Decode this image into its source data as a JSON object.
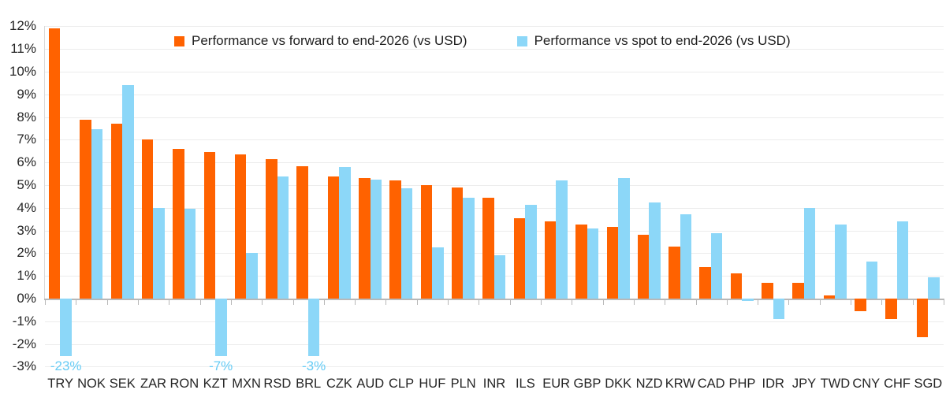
{
  "chart_data": {
    "type": "bar",
    "categories": [
      "TRY",
      "NOK",
      "SEK",
      "ZAR",
      "RON",
      "KZT",
      "MXN",
      "RSD",
      "BRL",
      "CZK",
      "AUD",
      "CLP",
      "HUF",
      "PLN",
      "INR",
      "ILS",
      "EUR",
      "GBP",
      "DKK",
      "NZD",
      "KRW",
      "CAD",
      "PHP",
      "IDR",
      "JPY",
      "TWD",
      "CNY",
      "CHF",
      "SGD"
    ],
    "series": [
      {
        "name": "Performance vs forward to end-2026 (vs USD)",
        "color": "#FF6200",
        "values": [
          11.9,
          7.9,
          7.7,
          7.0,
          6.6,
          6.45,
          6.35,
          6.15,
          5.85,
          5.4,
          5.3,
          5.2,
          5.0,
          4.9,
          4.45,
          3.55,
          3.4,
          3.25,
          3.15,
          2.8,
          2.3,
          1.4,
          1.1,
          0.7,
          0.7,
          0.15,
          -0.55,
          -0.9,
          -1.7
        ]
      },
      {
        "name": "Performance vs spot to end-2026 (vs USD)",
        "color": "#8CD7F8",
        "values": [
          -23,
          7.45,
          9.4,
          4.0,
          3.95,
          -7,
          2.0,
          5.4,
          -3,
          5.8,
          5.25,
          4.85,
          2.25,
          4.45,
          1.9,
          4.15,
          5.2,
          3.1,
          5.3,
          4.25,
          3.7,
          2.9,
          -0.1,
          -0.9,
          4.0,
          3.25,
          1.65,
          3.4,
          0.95
        ]
      }
    ],
    "ylim": [
      -3,
      12
    ],
    "ytick_step": 1,
    "ytick_labels": [
      "12%",
      "11%",
      "10%",
      "9%",
      "8%",
      "7%",
      "6%",
      "5%",
      "4%",
      "3%",
      "2%",
      "1%",
      "0%",
      "-1%",
      "-2%",
      "-3%"
    ],
    "grid": true,
    "legend_position": "top",
    "clipped_bar_labels": [
      {
        "category": "TRY",
        "series": 1,
        "label": "-23%"
      },
      {
        "category": "KZT",
        "series": 1,
        "label": "-7%"
      },
      {
        "category": "BRL",
        "series": 1,
        "label": "-3%"
      }
    ],
    "annotation_color": "#67CCF5",
    "colors": {
      "forward": "#FF6200",
      "spot": "#8CD7F8",
      "gridline": "#ececec",
      "axis": "#b8b8b8",
      "text": "#262626"
    }
  }
}
